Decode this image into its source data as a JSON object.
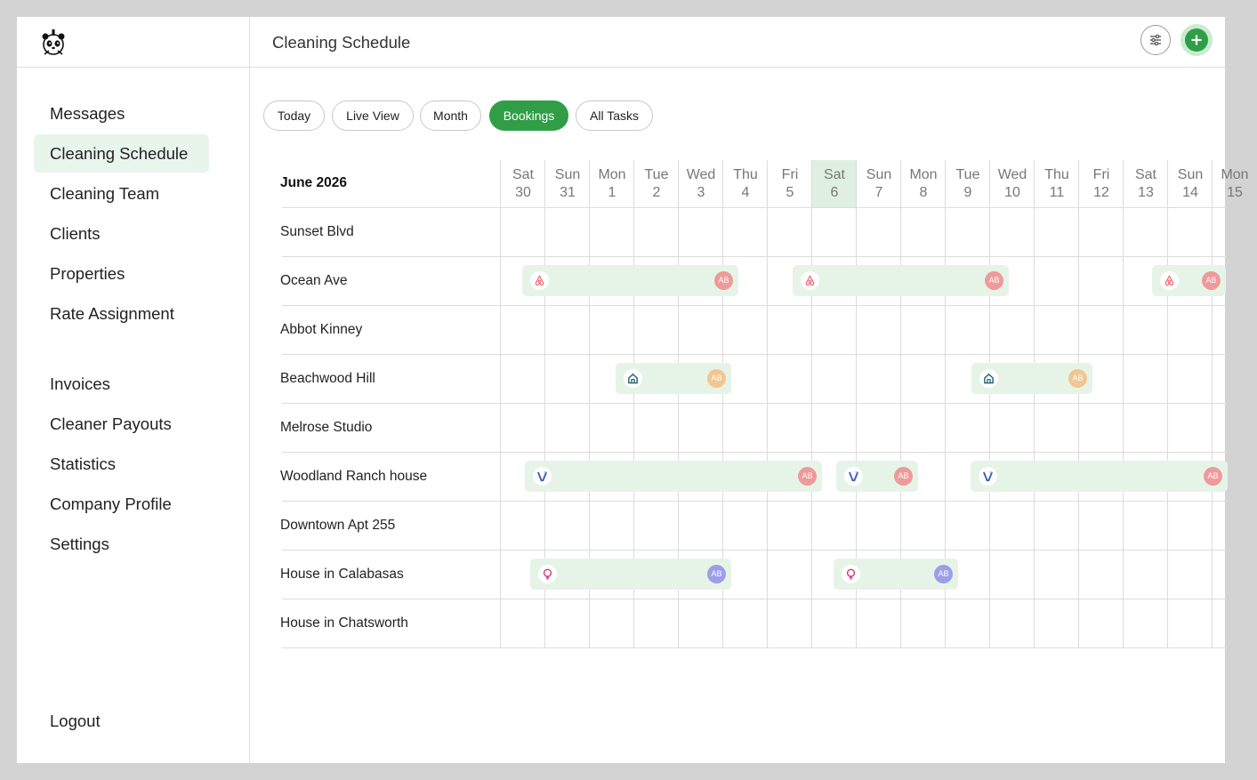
{
  "header": {
    "title": "Cleaning Schedule"
  },
  "sidebar": {
    "items": [
      {
        "label": "Messages",
        "active": false
      },
      {
        "label": "Cleaning Schedule",
        "active": true
      },
      {
        "label": "Cleaning Team",
        "active": false
      },
      {
        "label": "Clients",
        "active": false
      },
      {
        "label": "Properties",
        "active": false
      },
      {
        "label": "Rate Assignment",
        "active": false
      },
      {
        "label": "Invoices",
        "active": false
      },
      {
        "label": "Cleaner Payouts",
        "active": false
      },
      {
        "label": "Statistics",
        "active": false
      },
      {
        "label": "Company Profile",
        "active": false
      },
      {
        "label": "Settings",
        "active": false
      }
    ],
    "logout": "Logout"
  },
  "tabs": [
    {
      "label": "Today",
      "active": false
    },
    {
      "label": "Live View",
      "active": false
    },
    {
      "label": "Month",
      "active": false
    },
    {
      "label": "Bookings",
      "active": true
    },
    {
      "label": "All Tasks",
      "active": false
    }
  ],
  "calendar": {
    "month_label": "June 2026",
    "days": [
      {
        "dow": "Sat",
        "date": "30"
      },
      {
        "dow": "Sun",
        "date": "31"
      },
      {
        "dow": "Mon",
        "date": "1"
      },
      {
        "dow": "Tue",
        "date": "2"
      },
      {
        "dow": "Wed",
        "date": "3"
      },
      {
        "dow": "Thu",
        "date": "4"
      },
      {
        "dow": "Fri",
        "date": "5"
      },
      {
        "dow": "Sat",
        "date": "6",
        "today": true
      },
      {
        "dow": "Sun",
        "date": "7"
      },
      {
        "dow": "Mon",
        "date": "8"
      },
      {
        "dow": "Tue",
        "date": "9"
      },
      {
        "dow": "Wed",
        "date": "10"
      },
      {
        "dow": "Thu",
        "date": "11"
      },
      {
        "dow": "Fri",
        "date": "12"
      },
      {
        "dow": "Sat",
        "date": "13"
      },
      {
        "dow": "Sun",
        "date": "14"
      },
      {
        "dow": "Mon",
        "date": "15"
      }
    ],
    "properties": [
      "Sunset Blvd",
      "Ocean Ave",
      "Abbot Kinney",
      "Beachwood Hill",
      "Melrose Studio",
      "Woodland Ranch house",
      "Downtown Apt 255",
      "House in Calabasas",
      "House in Chatsworth"
    ]
  },
  "source_icons": {
    "airbnb": {
      "icon": "airbnb-icon",
      "color": "#e8606a"
    },
    "home": {
      "icon": "home-icon",
      "color": "#1f5f6e"
    },
    "vrbo": {
      "icon": "vrbo-icon",
      "color": "#3a5fb5"
    },
    "pin": {
      "icon": "pin-icon",
      "color": "#d6336c"
    }
  },
  "bookings": [
    {
      "property": 1,
      "start": "30",
      "end": "4",
      "source": "airbnb",
      "cleaner": "AB",
      "avatar_color": "#ef9a9a"
    },
    {
      "property": 1,
      "start": "5",
      "end": "10",
      "source": "airbnb",
      "cleaner": "AB",
      "avatar_color": "#ef9a9a"
    },
    {
      "property": 1,
      "start": "13",
      "end": "14",
      "source": "airbnb",
      "cleaner": "AB",
      "avatar_color": "#ef9a9a"
    },
    {
      "property": 3,
      "start": "1",
      "end": "3",
      "source": "home",
      "cleaner": "AB",
      "avatar_color": "#f3c590"
    },
    {
      "property": 3,
      "start": "9",
      "end": "11",
      "source": "home",
      "cleaner": "AB",
      "avatar_color": "#f3c590"
    },
    {
      "property": 5,
      "start": "30",
      "end": "6",
      "source": "vrbo",
      "cleaner": "AB",
      "avatar_color": "#ef9a9a"
    },
    {
      "property": 5,
      "start": "6",
      "end": "7",
      "source": "vrbo",
      "cleaner": "AB",
      "avatar_color": "#ef9a9a"
    },
    {
      "property": 5,
      "start": "9",
      "end": "14",
      "source": "vrbo",
      "cleaner": "AB",
      "avatar_color": "#ef9a9a"
    },
    {
      "property": 7,
      "start": "30",
      "end": "3",
      "source": "pin",
      "cleaner": "AB",
      "avatar_color": "#9e9de8"
    },
    {
      "property": 7,
      "start": "6",
      "end": "8",
      "source": "pin",
      "cleaner": "AB",
      "avatar_color": "#9e9de8"
    }
  ]
}
